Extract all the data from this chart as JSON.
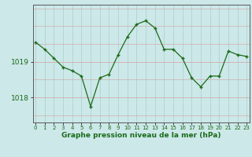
{
  "x": [
    0,
    1,
    2,
    3,
    4,
    5,
    6,
    7,
    8,
    9,
    10,
    11,
    12,
    13,
    14,
    15,
    16,
    17,
    18,
    19,
    20,
    21,
    22,
    23
  ],
  "y": [
    1019.55,
    1019.35,
    1019.1,
    1018.85,
    1018.75,
    1018.6,
    1017.75,
    1018.55,
    1018.65,
    1019.2,
    1019.7,
    1020.05,
    1020.15,
    1019.95,
    1019.35,
    1019.35,
    1019.1,
    1018.55,
    1018.3,
    1018.6,
    1018.6,
    1019.3,
    1019.2,
    1019.15
  ],
  "line_color": "#1a6b1a",
  "marker_color": "#1a6b1a",
  "bg_color": "#cce8e8",
  "grid_color": "#aacfcf",
  "ylabel_ticks": [
    1018,
    1019
  ],
  "xlabel": "Graphe pression niveau de la mer (hPa)",
  "ylim_min": 1017.3,
  "ylim_max": 1020.6,
  "xlim_min": -0.3,
  "xlim_max": 23.3,
  "axis_color": "#5a5a5a",
  "font_color": "#1a6b1a",
  "xlabel_fontsize": 6.5,
  "ytick_fontsize": 6.5,
  "xtick_fontsize": 5.0
}
